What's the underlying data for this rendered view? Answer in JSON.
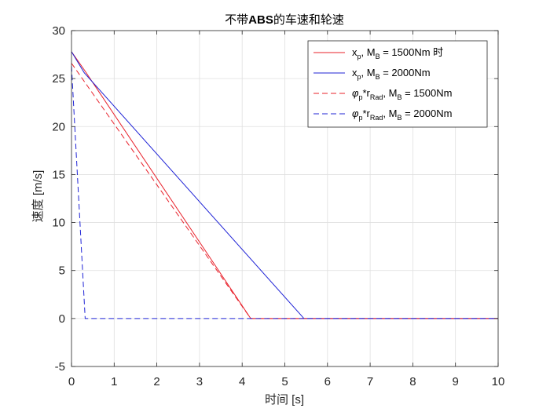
{
  "chart_data": {
    "type": "line",
    "title_parts": [
      "不带",
      "ABS",
      "的车速和轮速"
    ],
    "xlabel": "时间 [s]",
    "ylabel": "速度 [m/s]",
    "xlim": [
      0,
      10
    ],
    "ylim": [
      -5,
      30
    ],
    "xticks": [
      0,
      1,
      2,
      3,
      4,
      5,
      6,
      7,
      8,
      9,
      10
    ],
    "yticks": [
      -5,
      0,
      5,
      10,
      15,
      20,
      25,
      30
    ],
    "grid": true,
    "legend_placement": "top-right",
    "series": [
      {
        "color": "#e8202a",
        "dash": "solid",
        "legend": {
          "var": "x",
          "sub": "p",
          "mid": ",   M",
          "msub": "B",
          "val": " = 1500Nm 时"
        },
        "x": [
          0,
          0.3,
          4.2,
          10
        ],
        "y": [
          27.8,
          25.9,
          0,
          0
        ]
      },
      {
        "color": "#1f23d6",
        "dash": "solid",
        "legend": {
          "var": "x",
          "sub": "p",
          "mid": ",   M",
          "msub": "B",
          "val": " = 2000Nm"
        },
        "x": [
          0,
          0.3,
          5.45,
          10
        ],
        "y": [
          27.8,
          25.6,
          0,
          0
        ]
      },
      {
        "color": "#e8202a",
        "dash": "dashed",
        "legend": {
          "var": "φ",
          "sub": "p",
          "mid2": "*r",
          "sub2": "Rad",
          "mid": ",   M",
          "msub": "B",
          "val": " = 1500Nm"
        },
        "x": [
          0,
          4.2,
          10
        ],
        "y": [
          26.6,
          0,
          0
        ]
      },
      {
        "color": "#1f23d6",
        "dash": "dashed",
        "legend": {
          "var": "φ",
          "sub": "p",
          "mid2": "*r",
          "sub2": "Rad",
          "mid": ",   M",
          "msub": "B",
          "val": " = 2000Nm"
        },
        "x": [
          0,
          0.32,
          10
        ],
        "y": [
          26.3,
          0,
          0
        ]
      }
    ]
  }
}
